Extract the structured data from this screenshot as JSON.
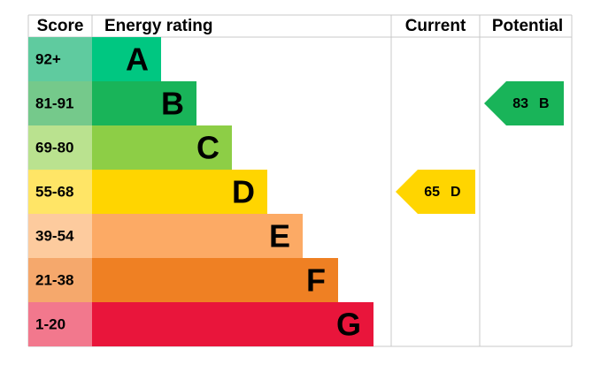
{
  "header": {
    "score": "Score",
    "rating": "Energy rating",
    "current": "Current",
    "potential": "Potential"
  },
  "bands": [
    {
      "score": "92+",
      "letter": "A",
      "color": "#00c781",
      "score_color": "#5fcb9f"
    },
    {
      "score": "81-91",
      "letter": "B",
      "color": "#19b459",
      "score_color": "#75c98b"
    },
    {
      "score": "69-80",
      "letter": "C",
      "color": "#8dce46",
      "score_color": "#bae28f"
    },
    {
      "score": "55-68",
      "letter": "D",
      "color": "#ffd500",
      "score_color": "#ffe566"
    },
    {
      "score": "39-54",
      "letter": "E",
      "color": "#fcaa65",
      "score_color": "#fdcb9e"
    },
    {
      "score": "21-38",
      "letter": "F",
      "color": "#ef8023",
      "score_color": "#f5a86c"
    },
    {
      "score": "1-20",
      "letter": "G",
      "color": "#e9153b",
      "score_color": "#f2788d"
    }
  ],
  "current": {
    "value": 65,
    "letter": "D"
  },
  "potential": {
    "value": 83,
    "letter": "B"
  }
}
